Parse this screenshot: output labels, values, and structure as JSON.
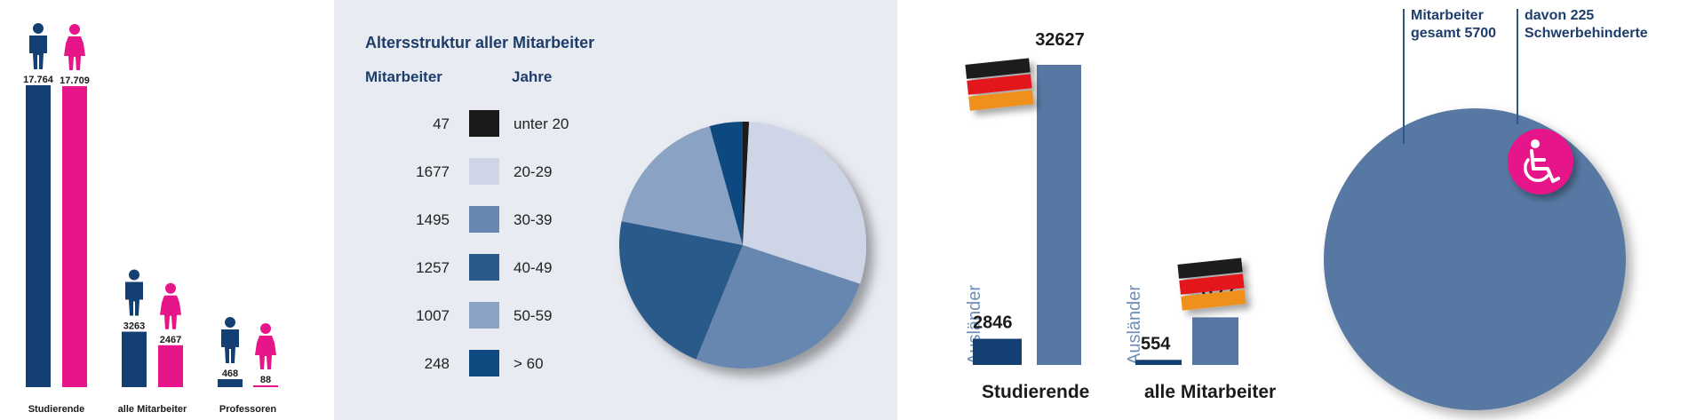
{
  "colors": {
    "male": "#143f72",
    "female": "#e6168a",
    "bar_light": "#5778a3",
    "panel_bg": "#e8ebf2",
    "title": "#1e3d6b",
    "auslaender_label": "#6f8fb8",
    "flag_black": "#1a1a1a",
    "flag_red": "#e3161b",
    "flag_gold": "#f0901c",
    "disability_badge": "#e6168a"
  },
  "chart_data": [
    {
      "type": "bar",
      "categories": [
        "Studierende",
        "alle Mitarbeiter",
        "Professoren"
      ],
      "series": [
        {
          "values": [
            17764,
            3263,
            468
          ],
          "value_labels": [
            "17.764",
            "3263",
            "468"
          ]
        },
        {
          "values": [
            17709,
            2467,
            88
          ],
          "value_labels": [
            "17.709",
            "2467",
            "88"
          ]
        }
      ],
      "icons": [
        "male-person-icon",
        "female-person-icon"
      ]
    },
    {
      "type": "pie",
      "title": "Altersstruktur aller Mitarbeiter",
      "col_headers": [
        "Mitarbeiter",
        "Jahre"
      ],
      "labels": [
        "unter 20",
        "20-29",
        "30-39",
        "40-49",
        "50-59",
        "> 60"
      ],
      "values": [
        47,
        1677,
        1495,
        1257,
        1007,
        248
      ],
      "value_labels": [
        "47",
        "1677",
        "1495",
        "1257",
        "1007",
        "248"
      ],
      "colors": [
        "#1a1a1a",
        "#cdd5e6",
        "#6787b0",
        "#2b5a8a",
        "#8aa2c4",
        "#0f4a80"
      ]
    },
    {
      "type": "bar",
      "groups": [
        {
          "name": "Studierende",
          "auslaender_label": "Ausländer",
          "auslaender": 2846,
          "total": 32627,
          "auslaender_text": "2846",
          "total_text": "32627"
        },
        {
          "name": "alle Mitarbeiter",
          "auslaender_label": "Ausländer",
          "auslaender": 554,
          "total": 5177,
          "auslaender_text": "554",
          "total_text": "5177"
        }
      ],
      "icons": [
        "german-flag-icon"
      ]
    },
    {
      "type": "pie",
      "total_label_1": "Mitarbeiter",
      "total_label_2": "gesamt 5700",
      "part_label_1": "davon 225",
      "part_label_2": "Schwerbehinderte",
      "total": 5700,
      "part": 225,
      "icons": [
        "wheelchair-icon"
      ]
    }
  ]
}
